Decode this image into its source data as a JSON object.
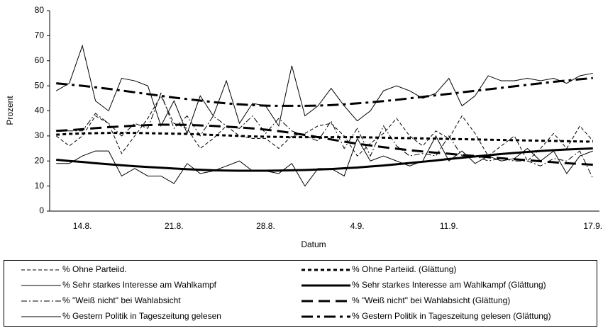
{
  "chart_data": {
    "type": "line",
    "x_label": "Datum",
    "y_label": "Prozent",
    "categories": [
      null,
      null,
      "14.8.",
      null,
      null,
      null,
      null,
      null,
      null,
      "21.8.",
      null,
      null,
      null,
      null,
      null,
      null,
      "28.8.",
      null,
      null,
      null,
      null,
      null,
      null,
      "4.9.",
      null,
      null,
      null,
      null,
      null,
      null,
      "11.9.",
      null,
      null,
      null,
      null,
      null,
      null,
      null,
      null,
      null,
      null,
      "17.9."
    ],
    "ylim": [
      0,
      80
    ],
    "yticks": [
      0,
      10,
      20,
      30,
      40,
      50,
      60,
      70,
      80
    ],
    "series": [
      {
        "name": "% Ohne Parteiid.",
        "color": "#000000",
        "style": "dashed",
        "bold": false,
        "values": [
          30,
          26,
          30,
          38,
          35,
          23,
          30,
          37,
          46,
          35,
          33,
          25,
          29,
          34,
          30,
          29,
          29,
          25,
          30,
          31,
          34,
          35,
          30,
          22,
          27,
          31,
          37,
          30,
          26,
          32,
          29,
          38,
          31,
          22,
          26,
          30,
          20,
          25,
          31,
          25,
          34,
          28
        ]
      },
      {
        "name": "% Ohne Parteiid. (Glättung)",
        "color": "#000000",
        "style": "dotted",
        "bold": true,
        "values": [
          30.5,
          30.8,
          31,
          31.1,
          31.2,
          31.2,
          31.2,
          31.1,
          31,
          30.9,
          30.8,
          30.6,
          30.4,
          30.2,
          30,
          29.8,
          29.7,
          29.6,
          29.5,
          29.5,
          29.5,
          29.5,
          29.5,
          29.5,
          29.4,
          29.3,
          29.2,
          29.1,
          29,
          28.9,
          28.8,
          28.7,
          28.6,
          28.5,
          28.4,
          28.3,
          28.2,
          28.1,
          28,
          27.9,
          27.8,
          27.7
        ]
      },
      {
        "name": "% Sehr starkes Interesse am Wahlkampf",
        "color": "#000000",
        "style": "solid",
        "bold": false,
        "values": [
          19,
          19,
          22,
          24,
          24,
          14,
          17,
          14,
          14,
          11,
          19,
          15,
          16,
          18,
          20,
          16,
          16,
          15,
          19,
          10,
          17,
          17,
          14,
          29,
          20,
          22,
          20,
          18,
          20,
          30,
          20,
          24,
          19,
          22,
          20,
          21,
          25,
          20,
          24,
          15,
          22,
          24
        ]
      },
      {
        "name": "% Sehr starkes Interesse am Wahlkampf (Glättung)",
        "color": "#000000",
        "style": "solid",
        "bold": true,
        "values": [
          20.5,
          20,
          19.6,
          19.1,
          18.7,
          18.3,
          17.9,
          17.6,
          17.3,
          17,
          16.7,
          16.5,
          16.3,
          16.2,
          16.1,
          16.1,
          16.1,
          16.2,
          16.3,
          16.4,
          16.6,
          16.8,
          17.1,
          17.4,
          17.8,
          18.2,
          18.7,
          19.2,
          19.7,
          20.2,
          20.8,
          21.3,
          21.8,
          22.3,
          22.8,
          23.2,
          23.6,
          24,
          24.3,
          24.6,
          24.8,
          25
        ]
      },
      {
        "name": "% \"Weiß nicht\" bei Wahlabsicht",
        "color": "#000000",
        "style": "dash-dot",
        "bold": false,
        "values": [
          32,
          32,
          32,
          39,
          35,
          30,
          35,
          33,
          47,
          33,
          38,
          30,
          38,
          34,
          33,
          38,
          31,
          37,
          32,
          30,
          28,
          36,
          25,
          33,
          22,
          34,
          26,
          22,
          23,
          22,
          30,
          22,
          22,
          20,
          21,
          20,
          20,
          18,
          21,
          20,
          24,
          13
        ]
      },
      {
        "name": "% \"Weiß nicht\" bei Wahlabsicht (Glättung)",
        "color": "#000000",
        "style": "long-dash",
        "bold": true,
        "values": [
          32,
          32.3,
          32.7,
          33.1,
          33.5,
          33.8,
          34.1,
          34.3,
          34.5,
          34.5,
          34.4,
          34.2,
          34,
          33.7,
          33.4,
          33,
          32.5,
          31.9,
          31.2,
          30.4,
          29.5,
          28.6,
          27.7,
          26.9,
          26.2,
          25.5,
          24.9,
          24.3,
          23.8,
          23.3,
          22.9,
          22.4,
          22,
          21.5,
          21.1,
          20.7,
          20.3,
          19.9,
          19.5,
          19.1,
          18.8,
          18.5
        ]
      },
      {
        "name": "% Gestern Politik in Tageszeitung gelesen",
        "color": "#000000",
        "style": "solid",
        "bold": false,
        "values": [
          48,
          51,
          66,
          44,
          40,
          53,
          52,
          50,
          34,
          44,
          31,
          46,
          38,
          52,
          35,
          43,
          42,
          34,
          58,
          38,
          42,
          49,
          42,
          36,
          40,
          48,
          50,
          48,
          45,
          47,
          53,
          42,
          46,
          54,
          52,
          52,
          53,
          52,
          53,
          51,
          54,
          55
        ]
      },
      {
        "name": "% Gestern Politik in Tageszeitung gelesen (Glättung)",
        "color": "#000000",
        "style": "dash-dot-long",
        "bold": true,
        "values": [
          51,
          50.5,
          50,
          49.4,
          48.8,
          48.1,
          47.4,
          46.7,
          46,
          45.3,
          44.7,
          44.1,
          43.5,
          43,
          42.6,
          42.3,
          42.1,
          42,
          42,
          42,
          42.1,
          42.3,
          42.6,
          43,
          43.4,
          43.9,
          44.4,
          45,
          45.6,
          46.2,
          46.8,
          47.4,
          48,
          48.6,
          49.2,
          49.8,
          50.4,
          51,
          51.6,
          52.1,
          52.6,
          53.1
        ]
      }
    ]
  }
}
